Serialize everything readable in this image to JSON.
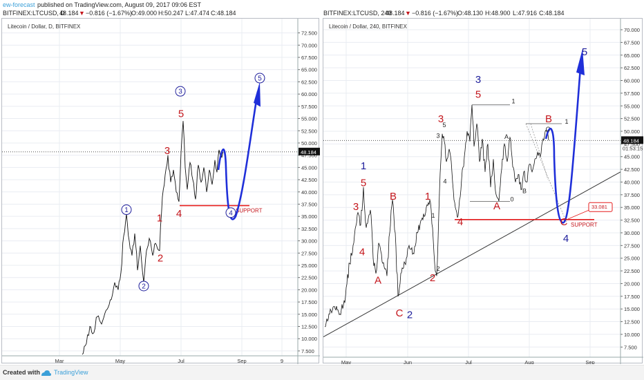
{
  "header": {
    "author": "ew-forecast",
    "published": "published on TradingView.com, August 09, 2017 09:06 EST",
    "left_quote": {
      "symbol": "BITFINEX:LTCUSD, D",
      "last": "48.184",
      "arrow": "▼",
      "change": "−0.816 (−1.67%)",
      "o": "O:49.000",
      "h": "H:50.247",
      "l": "L:47.474",
      "c": "C:48.184"
    },
    "right_quote": {
      "symbol": "BITFINEX:LTCUSD, 240",
      "last": "48.184",
      "arrow": "▼",
      "change": "−0.816 (−1.67%)",
      "o": "O:48.130",
      "h": "H:48.900",
      "l": "L:47.916",
      "c": "C:48.184"
    }
  },
  "footer": {
    "created_with": "Created with",
    "brand": "TradingView"
  },
  "colors": {
    "red": "#c4161c",
    "blue": "#1d1d9b",
    "price": "#111111",
    "grid": "#e9ecf2",
    "support": "#e51b1b",
    "accent": "#3a9fd8"
  },
  "chart_data": [
    {
      "type": "line",
      "title": "Litecoin / Dollar, D, BITFINEX",
      "x_ticks": [
        "Mar",
        "May",
        "Jul",
        "Sep",
        "9"
      ],
      "y_ticks": [
        "72.500",
        "70.000",
        "67.500",
        "65.000",
        "62.500",
        "60.000",
        "57.500",
        "55.000",
        "52.500",
        "50.000",
        "47.500",
        "45.000",
        "42.500",
        "40.000",
        "37.500",
        "35.000",
        "32.500",
        "30.000",
        "27.500",
        "25.000",
        "22.500",
        "20.000",
        "17.500",
        "15.000",
        "12.500",
        "10.000",
        "7.500"
      ],
      "ylim": [
        6.5,
        74
      ],
      "last_price_label": "48.184",
      "support_label": "SUPPORT",
      "support_level": 37.2,
      "wave_labels": [
        {
          "text": "1",
          "circled": true,
          "color": "blue",
          "x": "May 05",
          "y": 35.8
        },
        {
          "text": "2",
          "circled": true,
          "color": "blue",
          "x": "May 12",
          "y": 20.2
        },
        {
          "text": "3",
          "circled": true,
          "color": "blue",
          "x": "Jun 27",
          "y": 60.0
        },
        {
          "text": "4",
          "circled": true,
          "color": "blue",
          "x": "Aug 19",
          "y": 35.2
        },
        {
          "text": "5",
          "circled": true,
          "color": "blue",
          "x": "Sep 07",
          "y": 62.7
        },
        {
          "text": "1",
          "color": "red",
          "x": "Jun 02",
          "y": 34.0
        },
        {
          "text": "2",
          "color": "red",
          "x": "Jun 03",
          "y": 25.8
        },
        {
          "text": "3",
          "color": "red",
          "x": "Jun 15",
          "y": 47.7
        },
        {
          "text": "4",
          "color": "red",
          "x": "Jun 23",
          "y": 34.9
        },
        {
          "text": "5",
          "color": "red",
          "x": "Jun 28",
          "y": 55.3
        }
      ],
      "note": ""
    },
    {
      "type": "line",
      "title": "Litecoin / Dollar, 240, BITFINEX",
      "x_ticks": [
        "May",
        "Jun",
        "Jul",
        "Aug",
        "Sep"
      ],
      "y_ticks": [
        "70.000",
        "67.500",
        "65.000",
        "62.500",
        "60.000",
        "57.500",
        "55.000",
        "52.500",
        "50.000",
        "47.500",
        "45.000",
        "42.500",
        "40.000",
        "37.500",
        "35.000",
        "32.500",
        "30.000",
        "27.500",
        "25.000",
        "22.500",
        "20.000",
        "17.500",
        "15.000",
        "12.500",
        "10.000",
        "7.500"
      ],
      "ylim": [
        5.5,
        71.5
      ],
      "last_price_label": "48.184",
      "countdown_label": "01:53:15",
      "target_label": "33.081",
      "support_label": "SUPPORT",
      "support_level": 32.6,
      "wave_labels": [
        {
          "text": "1",
          "color": "blue",
          "x": "May 27",
          "y": 42.5
        },
        {
          "text": "5",
          "color": "red",
          "x": "May 27",
          "y": 39.2
        },
        {
          "text": "3",
          "color": "red",
          "x": "May 23",
          "y": 34.5
        },
        {
          "text": "4",
          "color": "red",
          "x": "May 26",
          "y": 25.6
        },
        {
          "text": "A",
          "color": "red",
          "x": "May 29",
          "y": 20.0
        },
        {
          "text": "B",
          "color": "red",
          "x": "Jun 03",
          "y": 36.5
        },
        {
          "text": "C",
          "color": "red",
          "x": "Jun 05",
          "y": 13.5
        },
        {
          "text": "2",
          "color": "blue",
          "x": "Jun 07",
          "y": 13.2
        },
        {
          "text": "1",
          "color": "red",
          "x": "Jun 11",
          "y": 36.5
        },
        {
          "text": "2",
          "color": "red",
          "x": "Jun 12",
          "y": 20.5
        },
        {
          "text": "3",
          "color": "red",
          "x": "Jun 15",
          "y": 51.8
        },
        {
          "text": "4",
          "color": "red",
          "x": "Jun 16",
          "y": 31.5
        },
        {
          "text": "3",
          "color": "blue",
          "x": "Jul 02",
          "y": 59.5
        },
        {
          "text": "5",
          "color": "red",
          "x": "Jul 02",
          "y": 56.6
        },
        {
          "text": "A",
          "color": "red",
          "x": "Jul 09",
          "y": 34.6
        },
        {
          "text": "B",
          "color": "red",
          "x": "Jul 25",
          "y": 51.8
        },
        {
          "text": "C",
          "color": "red",
          "x": "Aug 12",
          "y": 31.5
        },
        {
          "text": "4",
          "color": "blue",
          "x": "Aug 13",
          "y": 28.2
        },
        {
          "text": "5",
          "color": "blue",
          "x": "Aug 20",
          "y": 65.0
        },
        {
          "text": "1",
          "color": "black",
          "x": "Jun 18",
          "y": 33.0
        },
        {
          "text": "2",
          "color": "black",
          "x": "Jun 14",
          "y": 22.5
        },
        {
          "text": "3",
          "color": "black",
          "x": "Jun 16",
          "y": 48.7
        },
        {
          "text": "4",
          "color": "black",
          "x": "Jun 18",
          "y": 39.7
        },
        {
          "text": "5",
          "color": "black",
          "x": "Jun 18",
          "y": 50.8
        },
        {
          "text": "A",
          "color": "black",
          "x": "Jul 14",
          "y": 48.5
        },
        {
          "text": "B",
          "color": "black",
          "x": "Jul 20",
          "y": 37.8
        },
        {
          "text": "C",
          "color": "black",
          "x": "Aug 01",
          "y": 50.0
        },
        {
          "text": "1",
          "color": "black",
          "x": "Jul 07",
          "y": 55.5
        },
        {
          "text": "1",
          "color": "black",
          "x": "Aug 07",
          "y": 51.5
        },
        {
          "text": "0",
          "color": "black",
          "x": "Jul 13",
          "y": 36.2
        }
      ]
    }
  ]
}
